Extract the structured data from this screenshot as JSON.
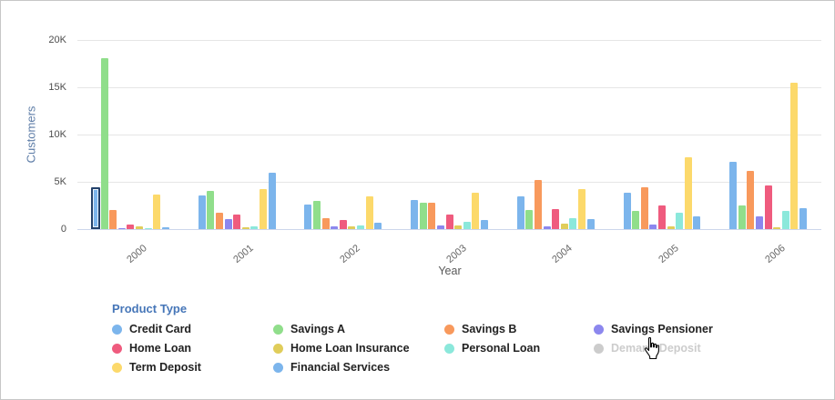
{
  "chart_data": {
    "type": "bar",
    "title": "",
    "xlabel": "Year",
    "ylabel": "Customers",
    "ylim": [
      0,
      20000
    ],
    "grid": true,
    "legend_position": "bottom",
    "legend_title": "Product Type",
    "yticks": [
      {
        "value": 0,
        "label": "0"
      },
      {
        "value": 5000,
        "label": "5K"
      },
      {
        "value": 10000,
        "label": "10K"
      },
      {
        "value": 15000,
        "label": "15K"
      },
      {
        "value": 20000,
        "label": "20K"
      }
    ],
    "categories": [
      "2000",
      "2001",
      "2002",
      "2003",
      "2004",
      "2005",
      "2006"
    ],
    "series": [
      {
        "name": "Credit Card",
        "color": "#7cb5ec",
        "visible": true,
        "values": [
          4400,
          3600,
          2550,
          3100,
          3450,
          3850,
          7150
        ]
      },
      {
        "name": "Savings A",
        "color": "#90de8b",
        "visible": true,
        "values": [
          18100,
          4000,
          3000,
          2750,
          2000,
          1900,
          2500
        ]
      },
      {
        "name": "Savings B",
        "color": "#f8995c",
        "visible": true,
        "values": [
          2000,
          1700,
          1150,
          2750,
          5200,
          4450,
          6200
        ]
      },
      {
        "name": "Savings Pensioner",
        "color": "#8c87ee",
        "visible": true,
        "values": [
          50,
          1100,
          300,
          350,
          300,
          450,
          1300
        ]
      },
      {
        "name": "Home Loan",
        "color": "#ef5b7e",
        "visible": true,
        "values": [
          450,
          1500,
          1000,
          1550,
          2100,
          2500,
          4600
        ]
      },
      {
        "name": "Home Loan Insurance",
        "color": "#e0cd5a",
        "visible": true,
        "values": [
          250,
          200,
          300,
          400,
          600,
          250,
          200
        ]
      },
      {
        "name": "Personal Loan",
        "color": "#8be8db",
        "visible": true,
        "values": [
          50,
          300,
          350,
          750,
          1150,
          1700,
          1900
        ]
      },
      {
        "name": "Demand Deposit",
        "color": "#cccccc",
        "visible": false,
        "values": []
      },
      {
        "name": "Term Deposit",
        "color": "#fcd96b",
        "visible": true,
        "values": [
          3700,
          4200,
          3500,
          3800,
          4200,
          7600,
          15500
        ]
      },
      {
        "name": "Financial Services",
        "color": "#7cb5ec",
        "visible": true,
        "values": [
          150,
          6000,
          700,
          950,
          1100,
          1300,
          2200
        ]
      }
    ],
    "highlight": {
      "series": "Credit Card",
      "category": "2000"
    }
  },
  "cursor": {
    "type": "hand-pointer"
  }
}
